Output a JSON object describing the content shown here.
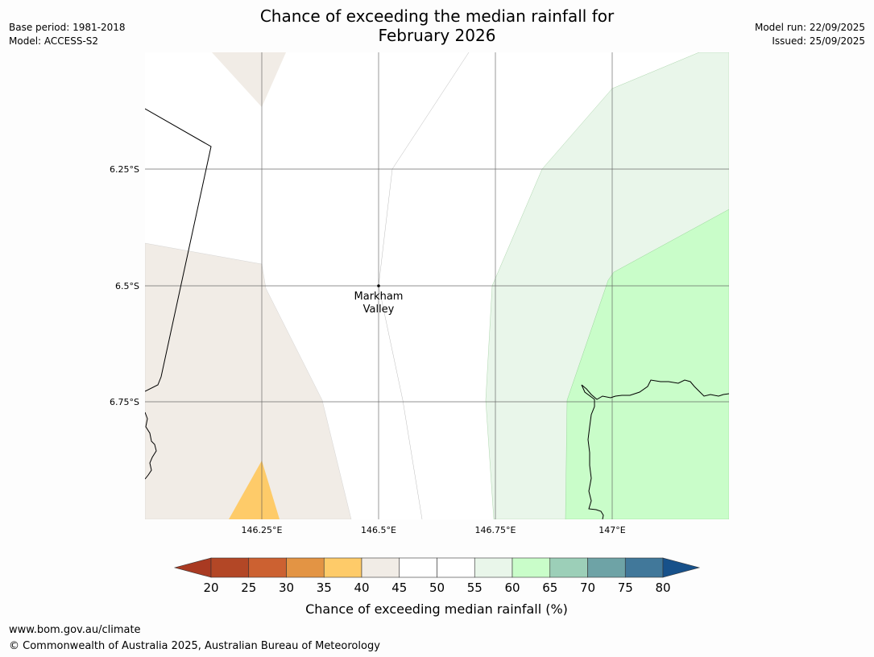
{
  "title_line1": "Chance of exceeding the median rainfall for",
  "title_line2": "February 2026",
  "meta": {
    "base_period": "Base period: 1981-2018",
    "model": "Model: ACCESS-S2",
    "model_run": "Model run: 22/09/2025",
    "issued": "Issued: 25/09/2025"
  },
  "map": {
    "lat_labels": [
      "6.25°S",
      "6.5°S",
      "6.75°S"
    ],
    "lon_labels": [
      "146.25°E",
      "146.5°E",
      "146.75°E",
      "147°E"
    ],
    "place_line1": "Markham",
    "place_line2": "Valley"
  },
  "colorbar": {
    "ticks": [
      "20",
      "25",
      "30",
      "35",
      "40",
      "45",
      "50",
      "55",
      "60",
      "65",
      "70",
      "75",
      "80"
    ],
    "colors": [
      "#a93a22",
      "#b34726",
      "#cc6131",
      "#e39444",
      "#fecb69",
      "#f1ece6",
      "#ffffff",
      "#ffffff",
      "#e9f6ea",
      "#c9fdc9",
      "#9ccfb8",
      "#6ea3a6",
      "#41789a",
      "#17518a"
    ],
    "label": "Chance of exceeding median rainfall (%)"
  },
  "footer": {
    "url": "www.bom.gov.au/climate",
    "copyright": "© Commonwealth of Australia 2025, Australian Bureau of Meteorology"
  }
}
